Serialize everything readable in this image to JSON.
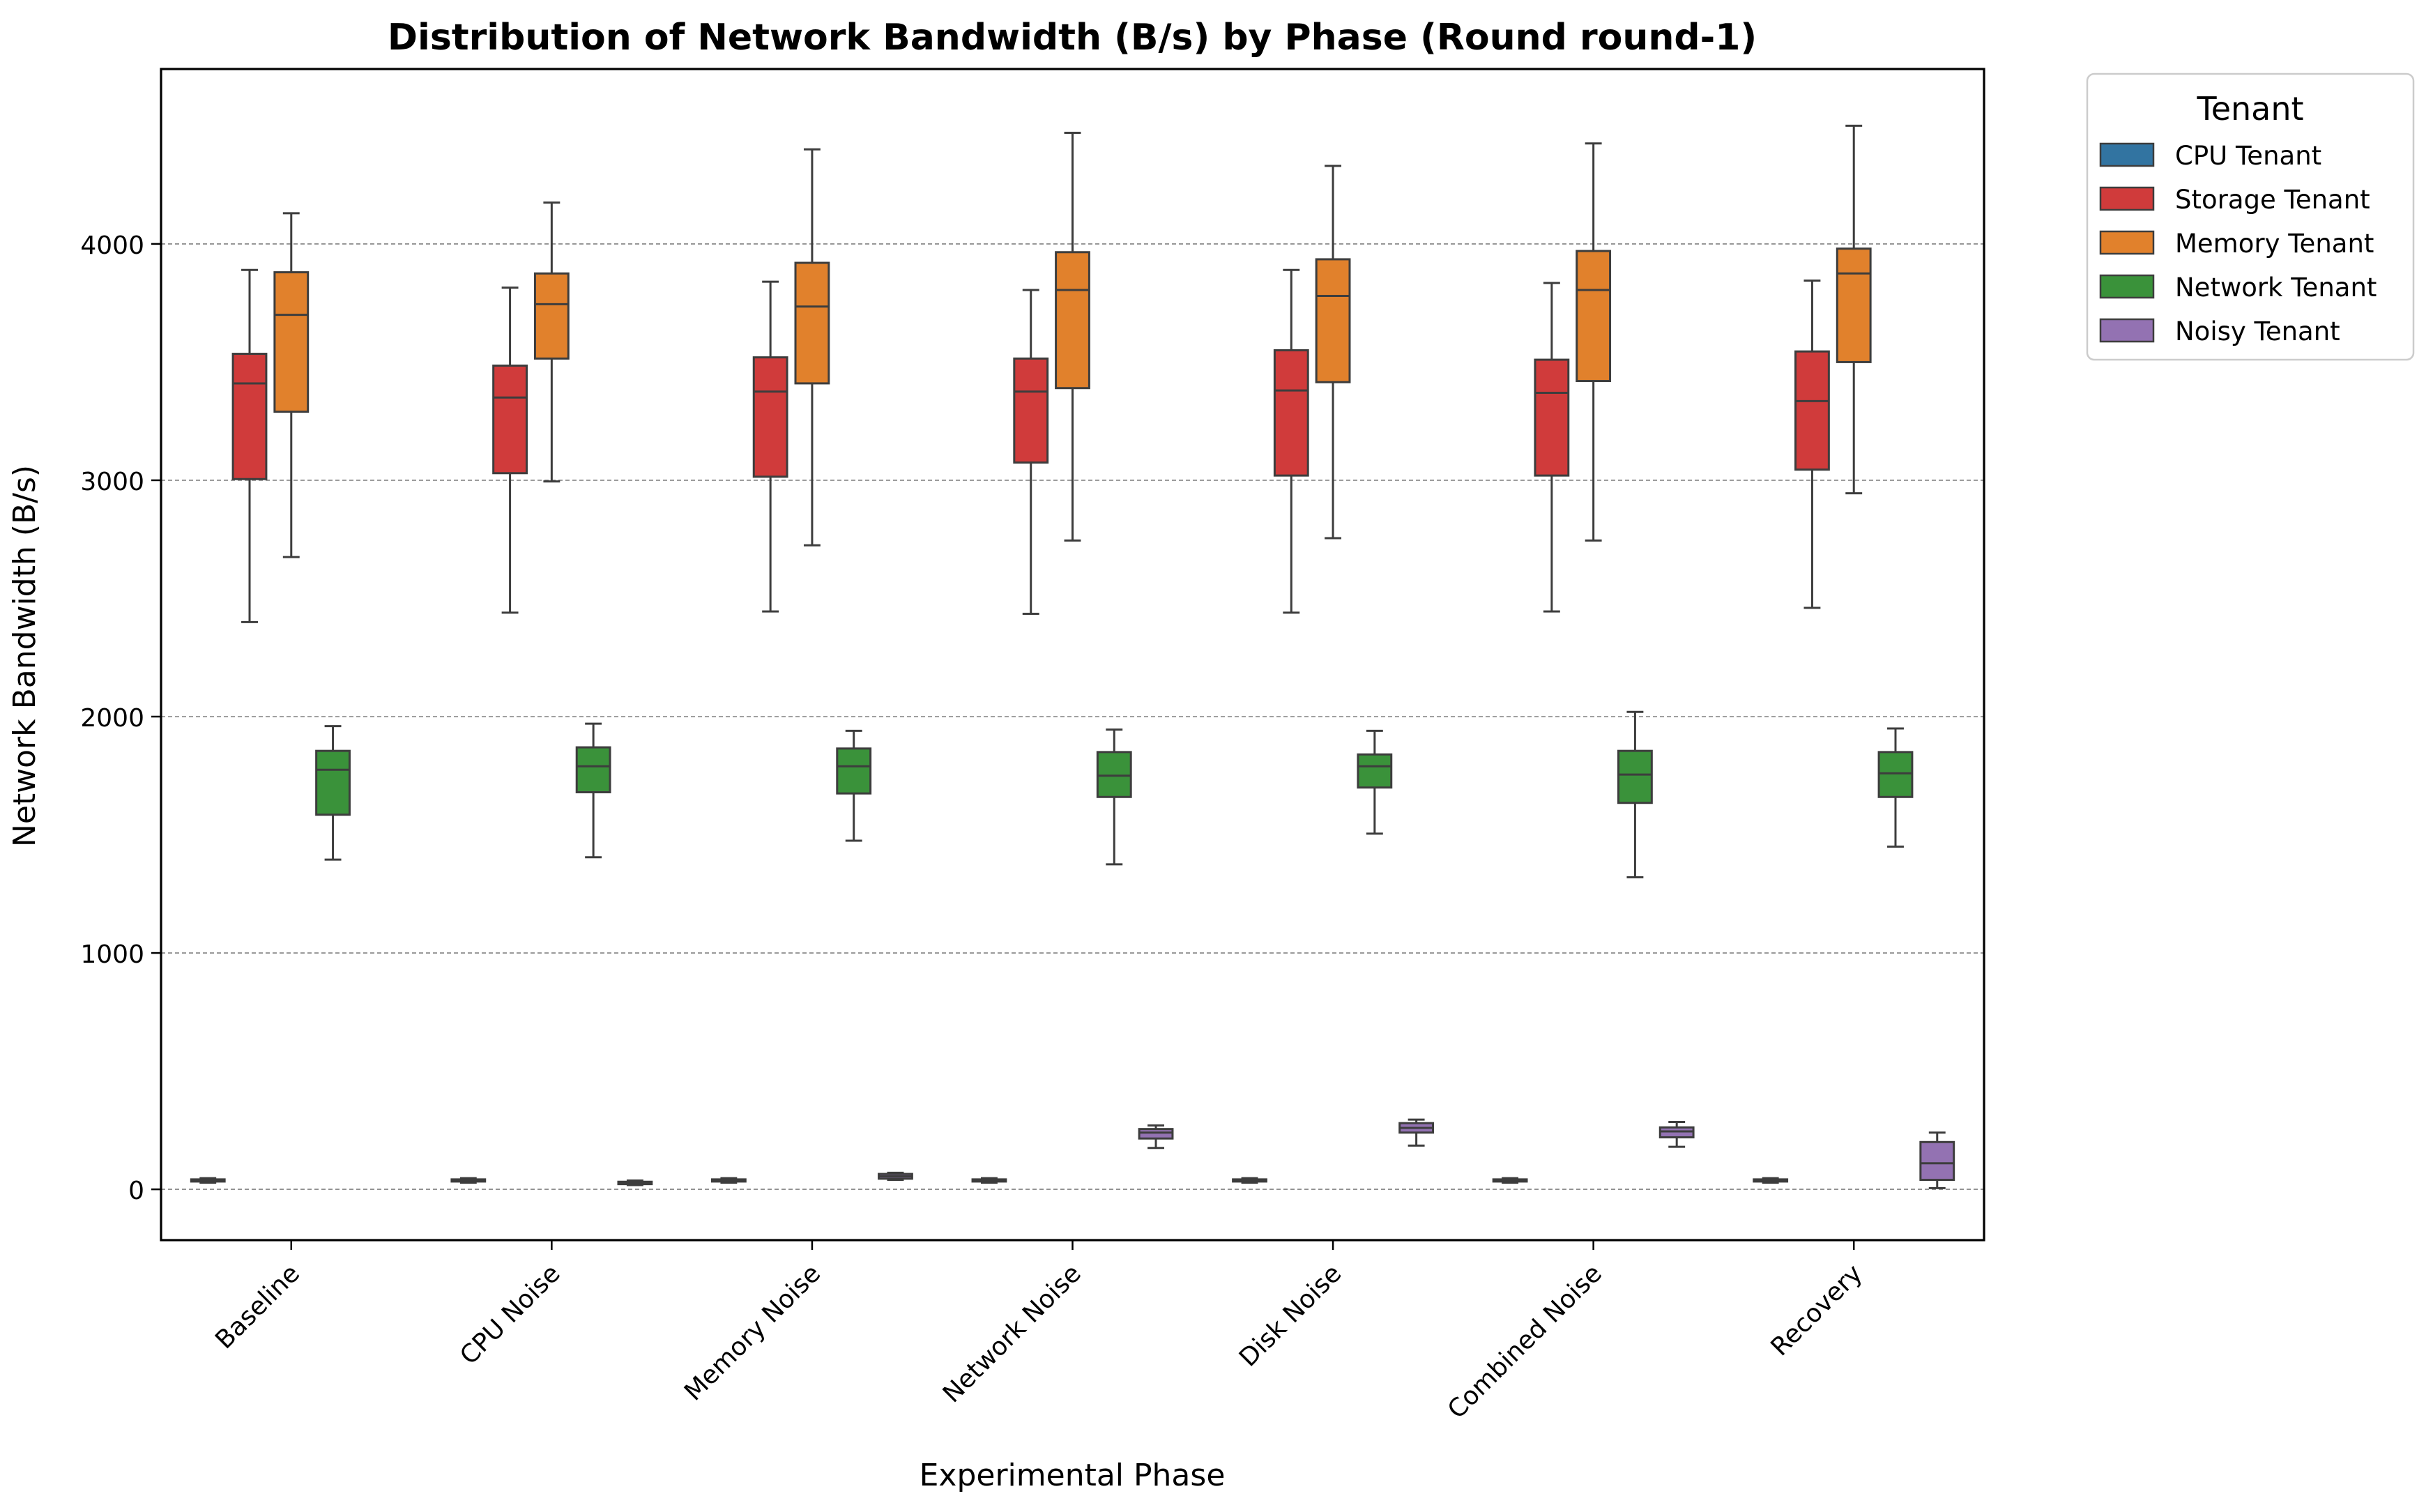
{
  "chart_data": {
    "type": "box",
    "title": "Distribution of Network Bandwidth (B/s) by Phase (Round round-1)",
    "xlabel": "Experimental Phase",
    "ylabel": "Network Bandwidth (B/s)",
    "ylim": [
      -215,
      4740
    ],
    "yticks": [
      0,
      1000,
      2000,
      3000,
      4000
    ],
    "grid": "horizontal dashed",
    "legend": {
      "title": "Tenant",
      "placement": "outside-top-right",
      "entries": [
        "CPU Tenant",
        "Storage Tenant",
        "Memory Tenant",
        "Network Tenant",
        "Noisy Tenant"
      ]
    },
    "categories": [
      "Baseline",
      "CPU Noise",
      "Memory Noise",
      "Network Noise",
      "Disk Noise",
      "Combined Noise",
      "Recovery"
    ],
    "series": [
      {
        "name": "CPU Tenant",
        "color": "#3274a1",
        "boxes": [
          {
            "whislo": 28,
            "q1": 33,
            "med": 38,
            "q3": 42,
            "whishi": 47
          },
          {
            "whislo": 28,
            "q1": 33,
            "med": 38,
            "q3": 42,
            "whishi": 47
          },
          {
            "whislo": 28,
            "q1": 33,
            "med": 38,
            "q3": 42,
            "whishi": 47
          },
          {
            "whislo": 28,
            "q1": 33,
            "med": 38,
            "q3": 42,
            "whishi": 47
          },
          {
            "whislo": 28,
            "q1": 33,
            "med": 38,
            "q3": 42,
            "whishi": 47
          },
          {
            "whislo": 28,
            "q1": 33,
            "med": 38,
            "q3": 42,
            "whishi": 47
          },
          {
            "whislo": 28,
            "q1": 33,
            "med": 38,
            "q3": 42,
            "whishi": 47
          }
        ]
      },
      {
        "name": "Storage Tenant",
        "color": "#d03b3b",
        "boxes": [
          {
            "whislo": 2400,
            "q1": 3005,
            "med": 3410,
            "q3": 3535,
            "whishi": 3890
          },
          {
            "whislo": 2440,
            "q1": 3030,
            "med": 3350,
            "q3": 3485,
            "whishi": 3815
          },
          {
            "whislo": 2445,
            "q1": 3015,
            "med": 3375,
            "q3": 3520,
            "whishi": 3840
          },
          {
            "whislo": 2435,
            "q1": 3075,
            "med": 3375,
            "q3": 3515,
            "whishi": 3805
          },
          {
            "whislo": 2440,
            "q1": 3020,
            "med": 3380,
            "q3": 3550,
            "whishi": 3890
          },
          {
            "whislo": 2445,
            "q1": 3020,
            "med": 3370,
            "q3": 3510,
            "whishi": 3835
          },
          {
            "whislo": 2460,
            "q1": 3045,
            "med": 3335,
            "q3": 3545,
            "whishi": 3845
          }
        ]
      },
      {
        "name": "Memory Tenant",
        "color": "#e1812c",
        "boxes": [
          {
            "whislo": 2675,
            "q1": 3290,
            "med": 3700,
            "q3": 3880,
            "whishi": 4130
          },
          {
            "whislo": 2995,
            "q1": 3515,
            "med": 3745,
            "q3": 3875,
            "whishi": 4175
          },
          {
            "whislo": 2725,
            "q1": 3410,
            "med": 3735,
            "q3": 3920,
            "whishi": 4400
          },
          {
            "whislo": 2745,
            "q1": 3390,
            "med": 3805,
            "q3": 3965,
            "whishi": 4470
          },
          {
            "whislo": 2755,
            "q1": 3415,
            "med": 3780,
            "q3": 3935,
            "whishi": 4330
          },
          {
            "whislo": 2745,
            "q1": 3420,
            "med": 3805,
            "q3": 3970,
            "whishi": 4425
          },
          {
            "whislo": 2945,
            "q1": 3500,
            "med": 3875,
            "q3": 3980,
            "whishi": 4500
          }
        ]
      },
      {
        "name": "Network Tenant",
        "color": "#3a923a",
        "boxes": [
          {
            "whislo": 1395,
            "q1": 1585,
            "med": 1775,
            "q3": 1855,
            "whishi": 1960
          },
          {
            "whislo": 1405,
            "q1": 1680,
            "med": 1790,
            "q3": 1870,
            "whishi": 1970
          },
          {
            "whislo": 1475,
            "q1": 1675,
            "med": 1790,
            "q3": 1865,
            "whishi": 1940
          },
          {
            "whislo": 1375,
            "q1": 1660,
            "med": 1750,
            "q3": 1850,
            "whishi": 1945
          },
          {
            "whislo": 1505,
            "q1": 1700,
            "med": 1790,
            "q3": 1840,
            "whishi": 1940
          },
          {
            "whislo": 1320,
            "q1": 1635,
            "med": 1755,
            "q3": 1855,
            "whishi": 2020
          },
          {
            "whislo": 1450,
            "q1": 1660,
            "med": 1760,
            "q3": 1850,
            "whishi": 1950
          }
        ]
      },
      {
        "name": "Noisy Tenant",
        "color": "#9372b2",
        "boxes": [
          null,
          {
            "whislo": 18,
            "q1": 22,
            "med": 27,
            "q3": 32,
            "whishi": 37
          },
          {
            "whislo": 40,
            "q1": 45,
            "med": 55,
            "q3": 65,
            "whishi": 70
          },
          {
            "whislo": 175,
            "q1": 215,
            "med": 240,
            "q3": 255,
            "whishi": 270
          },
          {
            "whislo": 185,
            "q1": 240,
            "med": 260,
            "q3": 280,
            "whishi": 295
          },
          {
            "whislo": 180,
            "q1": 220,
            "med": 245,
            "q3": 262,
            "whishi": 285
          },
          {
            "whislo": 5,
            "q1": 40,
            "med": 110,
            "q3": 200,
            "whishi": 240
          }
        ]
      }
    ]
  }
}
